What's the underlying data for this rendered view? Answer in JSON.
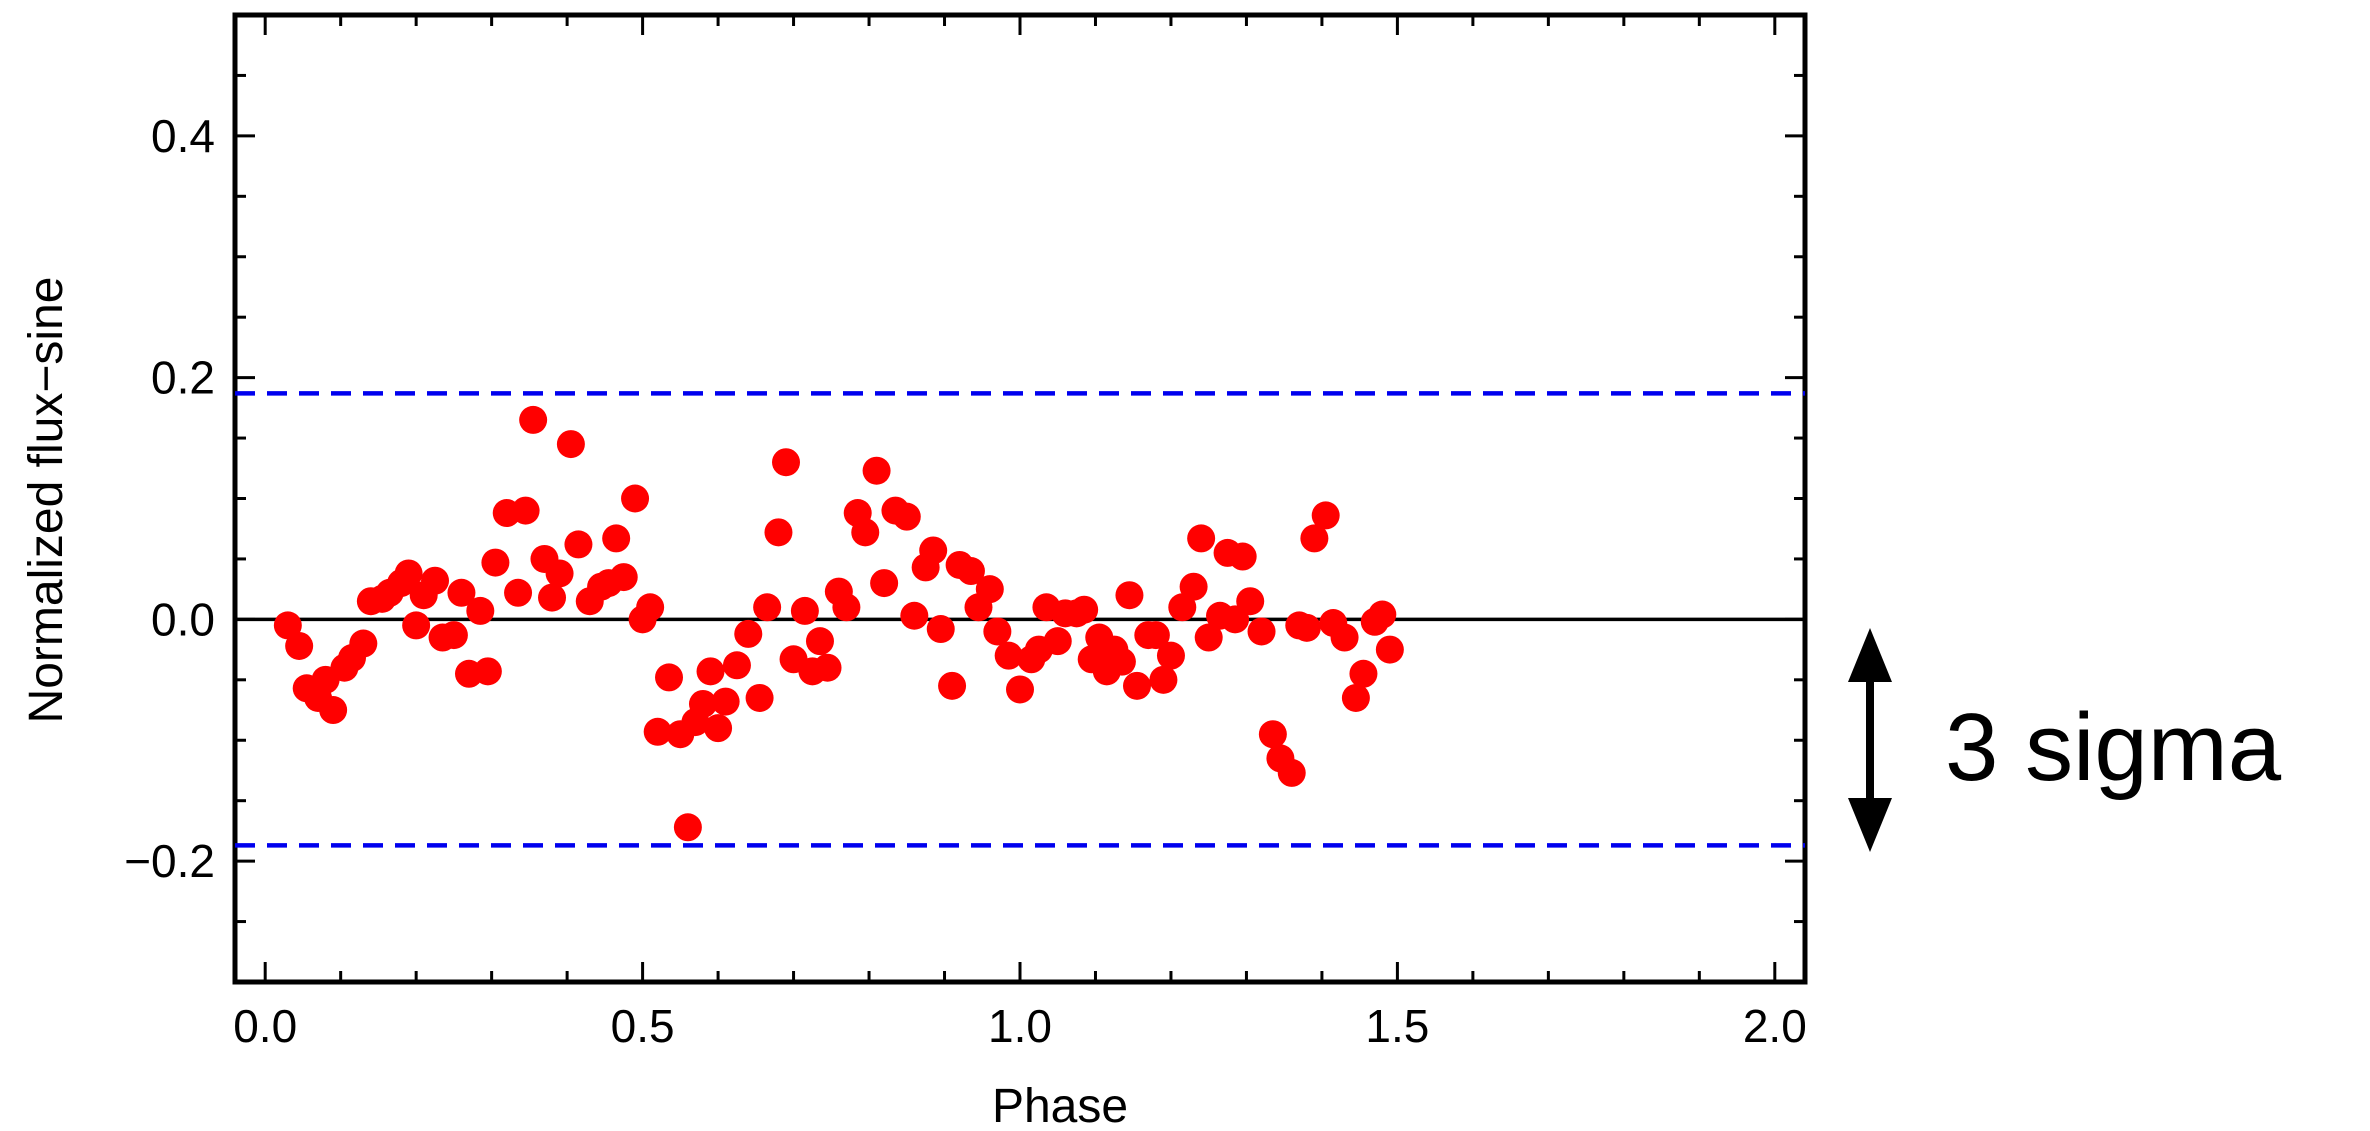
{
  "chart_data": {
    "type": "scatter",
    "xlabel": "Phase",
    "ylabel": "Normalized flux−sine",
    "xlim": [
      -0.04,
      2.04
    ],
    "ylim": [
      -0.3,
      0.5
    ],
    "xticks": [
      {
        "v": 0.0,
        "t": "0.0"
      },
      {
        "v": 0.5,
        "t": "0.5"
      },
      {
        "v": 1.0,
        "t": "1.0"
      },
      {
        "v": 1.5,
        "t": "1.5"
      },
      {
        "v": 2.0,
        "t": "2.0"
      }
    ],
    "yticks": [
      {
        "v": -0.2,
        "t": "−0.2"
      },
      {
        "v": 0.0,
        "t": "0.0"
      },
      {
        "v": 0.2,
        "t": "0.2"
      },
      {
        "v": 0.4,
        "t": "0.4"
      }
    ],
    "grid": false,
    "reference_lines": [
      {
        "y": 0.187,
        "style": "dashed",
        "color": "#0000ee"
      },
      {
        "y": -0.187,
        "style": "dashed",
        "color": "#0000ee"
      },
      {
        "y": 0.0,
        "style": "solid",
        "color": "#000000"
      }
    ],
    "point_color": "#ff0000",
    "points": [
      [
        0.03,
        -0.005
      ],
      [
        0.045,
        -0.022
      ],
      [
        0.055,
        -0.057
      ],
      [
        0.07,
        -0.065
      ],
      [
        0.08,
        -0.05
      ],
      [
        0.09,
        -0.075
      ],
      [
        0.105,
        -0.04
      ],
      [
        0.115,
        -0.032
      ],
      [
        0.13,
        -0.02
      ],
      [
        0.14,
        0.015
      ],
      [
        0.155,
        0.017
      ],
      [
        0.165,
        0.022
      ],
      [
        0.18,
        0.03
      ],
      [
        0.19,
        0.038
      ],
      [
        0.2,
        -0.005
      ],
      [
        0.21,
        0.02
      ],
      [
        0.225,
        0.032
      ],
      [
        0.235,
        -0.015
      ],
      [
        0.25,
        -0.013
      ],
      [
        0.26,
        0.022
      ],
      [
        0.27,
        -0.045
      ],
      [
        0.285,
        0.007
      ],
      [
        0.295,
        -0.043
      ],
      [
        0.305,
        0.047
      ],
      [
        0.32,
        0.088
      ],
      [
        0.335,
        0.022
      ],
      [
        0.345,
        0.09
      ],
      [
        0.355,
        0.165
      ],
      [
        0.37,
        0.05
      ],
      [
        0.38,
        0.018
      ],
      [
        0.39,
        0.038
      ],
      [
        0.405,
        0.145
      ],
      [
        0.415,
        0.062
      ],
      [
        0.43,
        0.015
      ],
      [
        0.445,
        0.027
      ],
      [
        0.455,
        0.03
      ],
      [
        0.465,
        0.067
      ],
      [
        0.475,
        0.035
      ],
      [
        0.49,
        0.1
      ],
      [
        0.5,
        0.0
      ],
      [
        0.51,
        0.01
      ],
      [
        0.52,
        -0.093
      ],
      [
        0.535,
        -0.048
      ],
      [
        0.55,
        -0.095
      ],
      [
        0.56,
        -0.172
      ],
      [
        0.57,
        -0.085
      ],
      [
        0.58,
        -0.07
      ],
      [
        0.59,
        -0.043
      ],
      [
        0.6,
        -0.09
      ],
      [
        0.61,
        -0.068
      ],
      [
        0.625,
        -0.038
      ],
      [
        0.64,
        -0.012
      ],
      [
        0.655,
        -0.065
      ],
      [
        0.665,
        0.01
      ],
      [
        0.68,
        0.072
      ],
      [
        0.69,
        0.13
      ],
      [
        0.7,
        -0.033
      ],
      [
        0.715,
        0.007
      ],
      [
        0.725,
        -0.043
      ],
      [
        0.735,
        -0.018
      ],
      [
        0.745,
        -0.04
      ],
      [
        0.76,
        0.023
      ],
      [
        0.77,
        0.01
      ],
      [
        0.785,
        0.088
      ],
      [
        0.795,
        0.072
      ],
      [
        0.81,
        0.123
      ],
      [
        0.82,
        0.03
      ],
      [
        0.835,
        0.09
      ],
      [
        0.85,
        0.085
      ],
      [
        0.86,
        0.003
      ],
      [
        0.875,
        0.043
      ],
      [
        0.885,
        0.057
      ],
      [
        0.895,
        -0.008
      ],
      [
        0.91,
        -0.055
      ],
      [
        0.92,
        0.045
      ],
      [
        0.935,
        0.04
      ],
      [
        0.945,
        0.01
      ],
      [
        0.96,
        0.025
      ],
      [
        0.97,
        -0.01
      ],
      [
        0.985,
        -0.03
      ],
      [
        1.0,
        -0.058
      ],
      [
        1.015,
        -0.033
      ],
      [
        1.025,
        -0.025
      ],
      [
        1.035,
        0.01
      ],
      [
        1.05,
        -0.018
      ],
      [
        1.06,
        0.005
      ],
      [
        1.075,
        0.005
      ],
      [
        1.085,
        0.008
      ],
      [
        1.095,
        -0.033
      ],
      [
        1.105,
        -0.015
      ],
      [
        1.115,
        -0.043
      ],
      [
        1.125,
        -0.025
      ],
      [
        1.135,
        -0.035
      ],
      [
        1.145,
        0.02
      ],
      [
        1.155,
        -0.055
      ],
      [
        1.17,
        -0.013
      ],
      [
        1.18,
        -0.013
      ],
      [
        1.19,
        -0.05
      ],
      [
        1.2,
        -0.03
      ],
      [
        1.215,
        0.01
      ],
      [
        1.23,
        0.027
      ],
      [
        1.24,
        0.067
      ],
      [
        1.25,
        -0.015
      ],
      [
        1.265,
        0.003
      ],
      [
        1.275,
        0.055
      ],
      [
        1.285,
        0.0
      ],
      [
        1.295,
        0.052
      ],
      [
        1.305,
        0.015
      ],
      [
        1.32,
        -0.01
      ],
      [
        1.335,
        -0.095
      ],
      [
        1.345,
        -0.115
      ],
      [
        1.36,
        -0.127
      ],
      [
        1.37,
        -0.005
      ],
      [
        1.38,
        -0.007
      ],
      [
        1.39,
        0.067
      ],
      [
        1.405,
        0.086
      ],
      [
        1.415,
        -0.003
      ],
      [
        1.43,
        -0.015
      ],
      [
        1.445,
        -0.065
      ],
      [
        1.455,
        -0.045
      ],
      [
        1.47,
        -0.002
      ],
      [
        1.48,
        0.004
      ],
      [
        1.49,
        -0.025
      ]
    ],
    "annotation": {
      "text": "3 sigma",
      "arrow": "double-headed-vertical"
    }
  }
}
